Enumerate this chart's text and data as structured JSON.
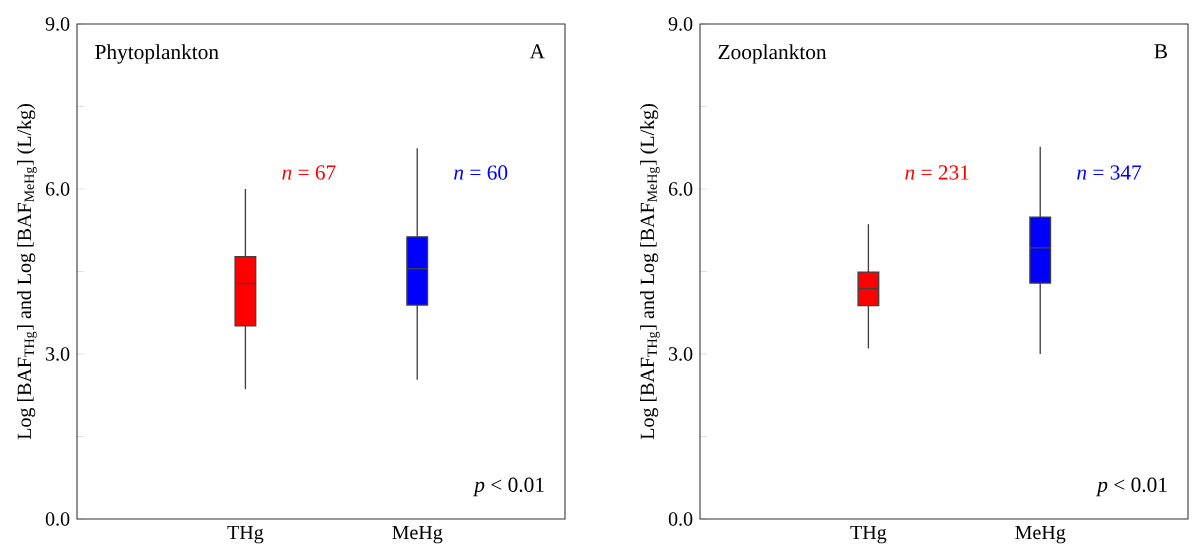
{
  "chart_data": [
    {
      "type": "box",
      "ylabel": "Log [BAF$_{THg}$] and Log [BAF$_{MeHg}$] (L/kg)",
      "categories": [
        "THg",
        "MeHg"
      ],
      "colors": [
        "#ff0000",
        "#0000ff"
      ],
      "boxes": [
        {
          "low": 2.36,
          "q1": 3.51,
          "median": 4.28,
          "q3": 4.77,
          "high": 6.0
        },
        {
          "low": 2.53,
          "q1": 3.89,
          "median": 4.55,
          "q3": 5.13,
          "high": 6.74
        }
      ],
      "ylim": [
        0,
        9
      ],
      "yticks": [
        {
          "value": 0,
          "label": "0.0"
        },
        {
          "value": 1.5,
          "label": null
        },
        {
          "value": 3,
          "label": "3.0"
        },
        {
          "value": 4.5,
          "label": null
        },
        {
          "value": 6,
          "label": "6.0"
        },
        {
          "value": 7.5,
          "label": null
        },
        {
          "value": 9,
          "label": "9.0"
        }
      ],
      "annotations": [
        "Phytoplankton",
        "A",
        "*p* < 0.01",
        "*n* = 67",
        "*n* = 60"
      ]
    },
    {
      "type": "box",
      "ylabel": "Log [BAF$_{THg}$] and Log [BAF$_{MeHg}$] (L/kg)",
      "categories": [
        "THg",
        "MeHg"
      ],
      "colors": [
        "#ff0000",
        "#0000ff"
      ],
      "boxes": [
        {
          "low": 3.1,
          "q1": 3.88,
          "median": 4.19,
          "q3": 4.49,
          "high": 5.36
        },
        {
          "low": 3.0,
          "q1": 4.29,
          "median": 4.93,
          "q3": 5.49,
          "high": 6.77
        }
      ],
      "ylim": [
        0,
        9
      ],
      "yticks": [
        {
          "value": 0,
          "label": "0.0"
        },
        {
          "value": 1.5,
          "label": null
        },
        {
          "value": 3,
          "label": "3.0"
        },
        {
          "value": 4.5,
          "label": null
        },
        {
          "value": 6,
          "label": "6.0"
        },
        {
          "value": 7.5,
          "label": null
        },
        {
          "value": 9,
          "label": "9.0"
        }
      ],
      "annotations": [
        "Zooplankton",
        "B",
        "*p* < 0.01",
        "*n* = 231",
        "*n* = 347"
      ]
    }
  ]
}
